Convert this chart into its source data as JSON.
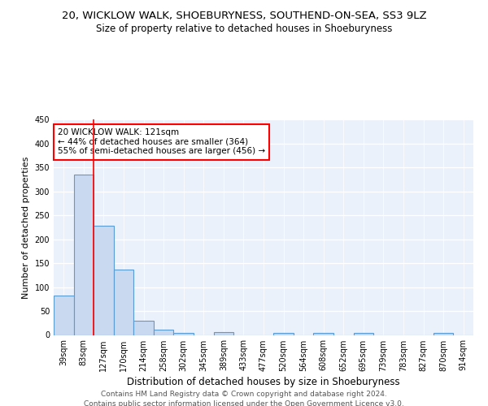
{
  "title1": "20, WICKLOW WALK, SHOEBURYNESS, SOUTHEND-ON-SEA, SS3 9LZ",
  "title2": "Size of property relative to detached houses in Shoeburyness",
  "xlabel": "Distribution of detached houses by size in Shoeburyness",
  "ylabel": "Number of detached properties",
  "categories": [
    "39sqm",
    "83sqm",
    "127sqm",
    "170sqm",
    "214sqm",
    "258sqm",
    "302sqm",
    "345sqm",
    "389sqm",
    "433sqm",
    "477sqm",
    "520sqm",
    "564sqm",
    "608sqm",
    "652sqm",
    "695sqm",
    "739sqm",
    "783sqm",
    "827sqm",
    "870sqm",
    "914sqm"
  ],
  "values": [
    83,
    335,
    229,
    136,
    29,
    11,
    5,
    0,
    6,
    0,
    0,
    5,
    0,
    4,
    0,
    5,
    0,
    0,
    0,
    4,
    0
  ],
  "bar_color": "#c8d9f0",
  "bar_edge_color": "#5b9bd5",
  "red_line_x": 1.5,
  "annotation_line1": "20 WICKLOW WALK: 121sqm",
  "annotation_line2": "← 44% of detached houses are smaller (364)",
  "annotation_line3": "55% of semi-detached houses are larger (456) →",
  "annotation_box_color": "white",
  "annotation_box_edge_color": "red",
  "ylim": [
    0,
    450
  ],
  "yticks": [
    0,
    50,
    100,
    150,
    200,
    250,
    300,
    350,
    400,
    450
  ],
  "footer_line1": "Contains HM Land Registry data © Crown copyright and database right 2024.",
  "footer_line2": "Contains public sector information licensed under the Open Government Licence v3.0.",
  "background_color": "#eaf1fb",
  "grid_color": "white",
  "title1_fontsize": 9.5,
  "title2_fontsize": 8.5,
  "xlabel_fontsize": 8.5,
  "ylabel_fontsize": 8,
  "tick_fontsize": 7,
  "footer_fontsize": 6.5
}
